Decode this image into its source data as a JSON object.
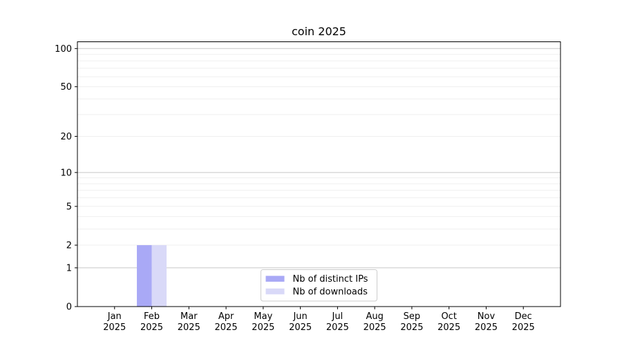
{
  "colors": {
    "background": "#ffffff",
    "spine": "#000000",
    "grid_major": "#c8c8c8",
    "grid_minor": "#efefef",
    "legend_border": "#cccccc",
    "text": "#000000",
    "series_distinct_ips": "#a9a9f6",
    "series_downloads": "#d9d9f8"
  },
  "chart_data": {
    "type": "bar",
    "title": "coin 2025",
    "xlabel": "",
    "ylabel": "",
    "y_scale": "log1p",
    "y_max": 113,
    "ylim": [
      0,
      113
    ],
    "grid": "both",
    "legend_position": "lower center",
    "y_ticks": [
      0,
      1,
      2,
      5,
      10,
      20,
      50,
      100
    ],
    "y_major_gridlines": [
      1,
      10,
      100
    ],
    "x_tick_labels": [
      {
        "month": "Jan",
        "year": "2025"
      },
      {
        "month": "Feb",
        "year": "2025"
      },
      {
        "month": "Mar",
        "year": "2025"
      },
      {
        "month": "Apr",
        "year": "2025"
      },
      {
        "month": "May",
        "year": "2025"
      },
      {
        "month": "Jun",
        "year": "2025"
      },
      {
        "month": "Jul",
        "year": "2025"
      },
      {
        "month": "Aug",
        "year": "2025"
      },
      {
        "month": "Sep",
        "year": "2025"
      },
      {
        "month": "Oct",
        "year": "2025"
      },
      {
        "month": "Nov",
        "year": "2025"
      },
      {
        "month": "Dec",
        "year": "2025"
      }
    ],
    "series": [
      {
        "name": "Nb of distinct IPs",
        "color": "#a9a9f6",
        "values": [
          0,
          2,
          0,
          0,
          0,
          0,
          0,
          0,
          0,
          0,
          0,
          0
        ]
      },
      {
        "name": "Nb of downloads",
        "color": "#d9d9f8",
        "values": [
          0,
          2,
          0,
          0,
          0,
          0,
          0,
          0,
          0,
          0,
          0,
          0
        ]
      }
    ]
  }
}
